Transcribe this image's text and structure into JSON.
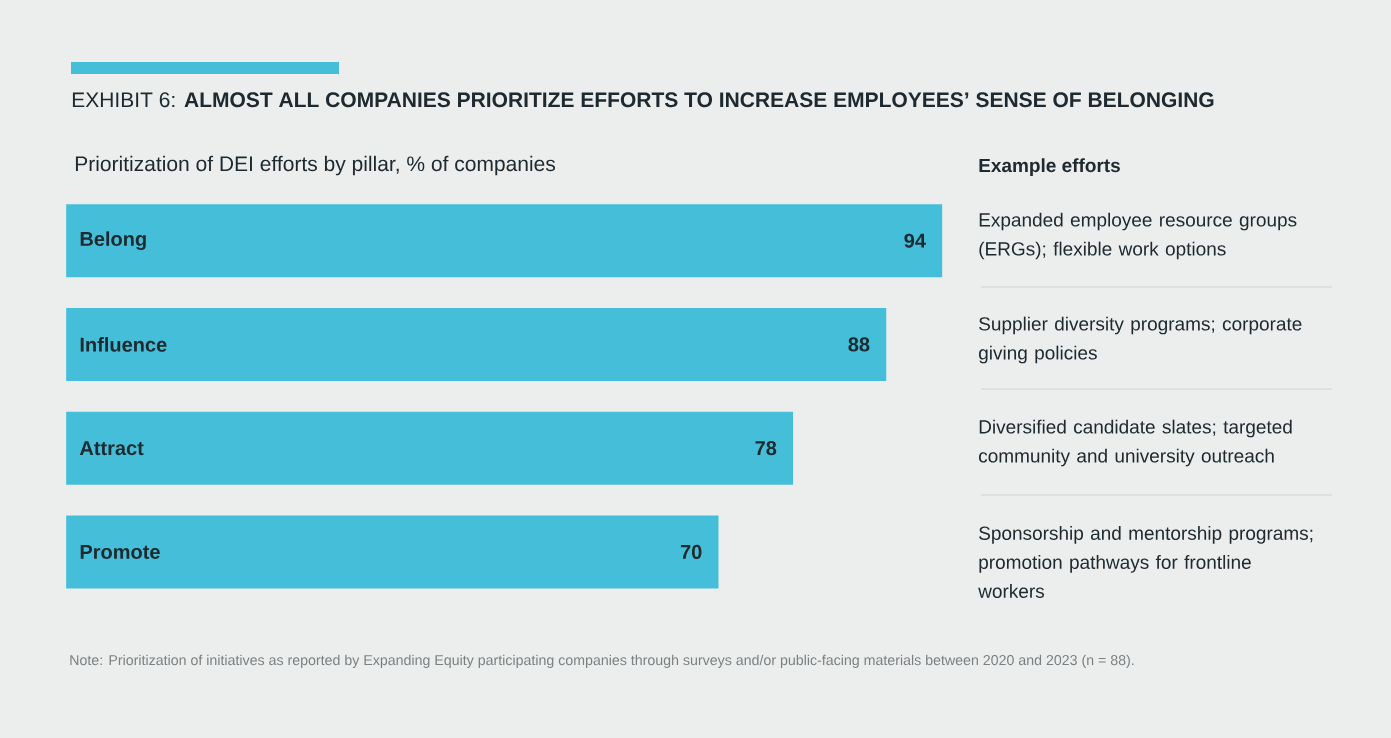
{
  "chart_data": [
    {
      "type": "bar",
      "orientation": "horizontal",
      "title": "EXHIBIT 6: **ALMOST ALL COMPANIES PRIORITIZE EFFORTS TO INCREASE EMPLOYEES’ SENSE OF BELONGING**",
      "subtitle": "Prioritization of DEI efforts by pillar, % of companies",
      "categories": [
        "Belong",
        "Influence",
        "Attract",
        "Promote"
      ],
      "values": [
        94,
        88,
        78,
        70
      ],
      "color": "#45bfd9",
      "xlim": [
        0,
        94
      ],
      "data_labels": true,
      "annotations": [
        "Note: Prioritization of initiatives as reported by Expanding Equity participating companies through surveys and/or public-facing materials between 2020 and 2023 (n = 88)."
      ]
    },
    {
      "type": "other",
      "title": "Example efforts",
      "annotations": [
        "Expanded employee resource groups (ERGs); flexible work options",
        "Supplier diversity programs; corporate giving policies",
        "Diversified candidate slates; targeted community and university outreach",
        "Sponsorship and mentorship programs; promotion pathways for frontline workers"
      ]
    }
  ]
}
